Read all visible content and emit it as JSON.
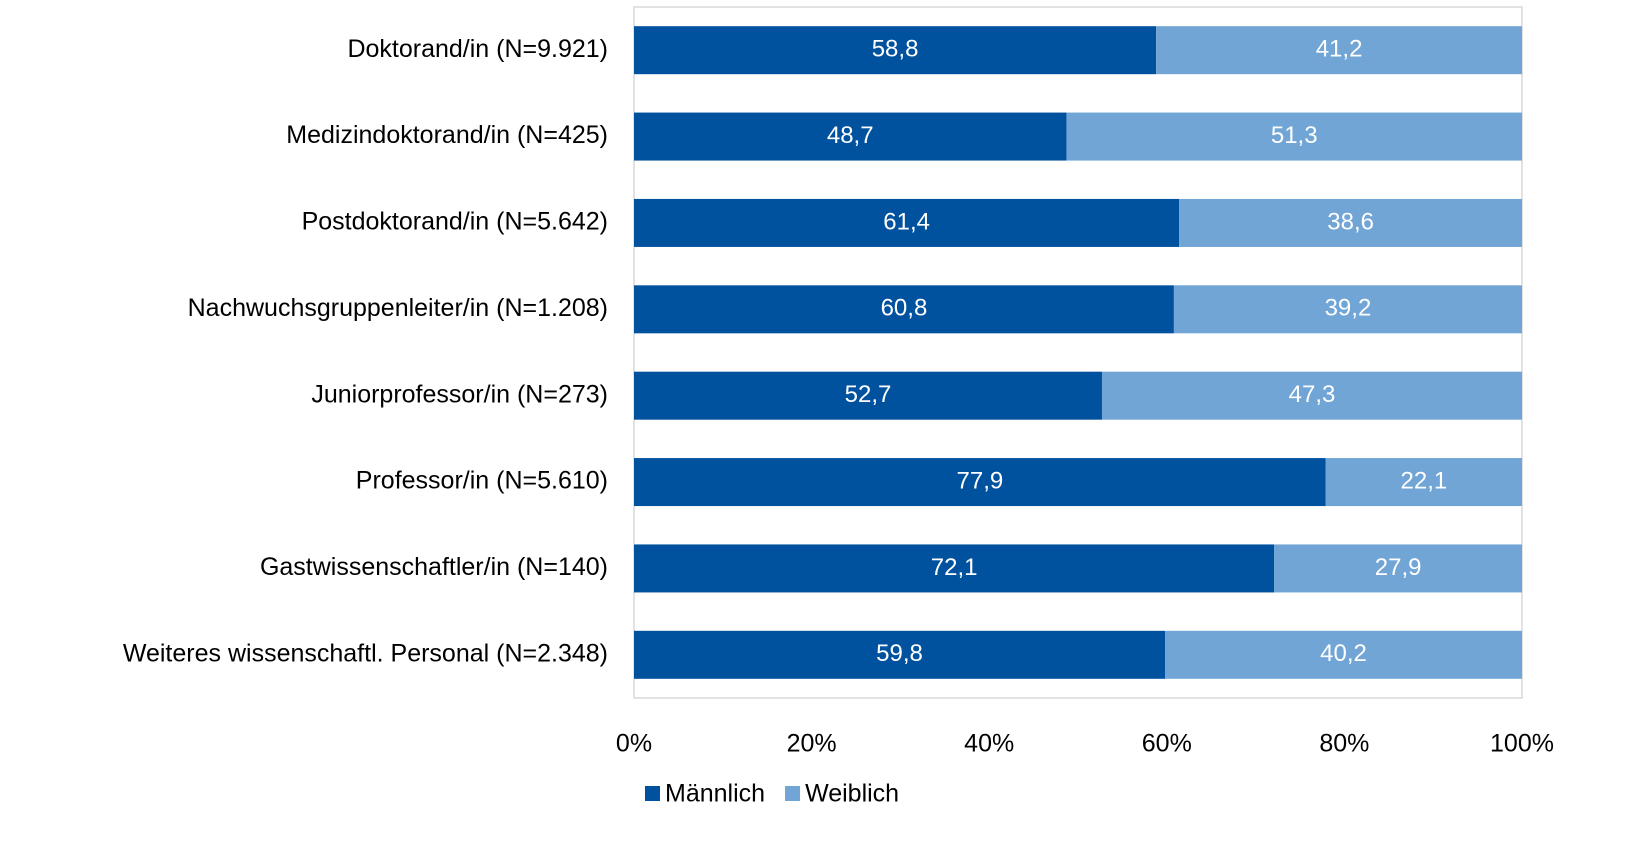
{
  "chart_data": {
    "type": "bar",
    "orientation": "horizontal",
    "stacked": true,
    "categories": [
      "Doktorand/in (N=9.921)",
      "Medizindoktorand/in (N=425)",
      "Postdoktorand/in (N=5.642)",
      "Nachwuchsgruppenleiter/in (N=1.208)",
      "Juniorprofessor/in (N=273)",
      "Professor/in (N=5.610)",
      "Gastwissenschaftler/in (N=140)",
      "Weiteres wissenschaftl. Personal (N=2.348)"
    ],
    "series": [
      {
        "name": "Männlich",
        "color": "#00519e",
        "values": [
          58.8,
          48.7,
          61.4,
          60.8,
          52.7,
          77.9,
          72.1,
          59.8
        ],
        "value_labels": [
          "58,8",
          "48,7",
          "61,4",
          "60,8",
          "52,7",
          "77,9",
          "72,1",
          "59,8"
        ]
      },
      {
        "name": "Weiblich",
        "color": "#70a5d6",
        "values": [
          41.2,
          51.3,
          38.6,
          39.2,
          47.3,
          22.1,
          27.9,
          40.2
        ],
        "value_labels": [
          "41,2",
          "51,3",
          "38,6",
          "39,2",
          "47,3",
          "22,1",
          "27,9",
          "40,2"
        ]
      }
    ],
    "xlim": [
      0,
      100
    ],
    "xticks": [
      {
        "value": 0,
        "label": "0%"
      },
      {
        "value": 20,
        "label": "20%"
      },
      {
        "value": 40,
        "label": "40%"
      },
      {
        "value": 60,
        "label": "60%"
      },
      {
        "value": 80,
        "label": "80%"
      },
      {
        "value": 100,
        "label": "100%"
      }
    ],
    "legend": "bottom"
  }
}
